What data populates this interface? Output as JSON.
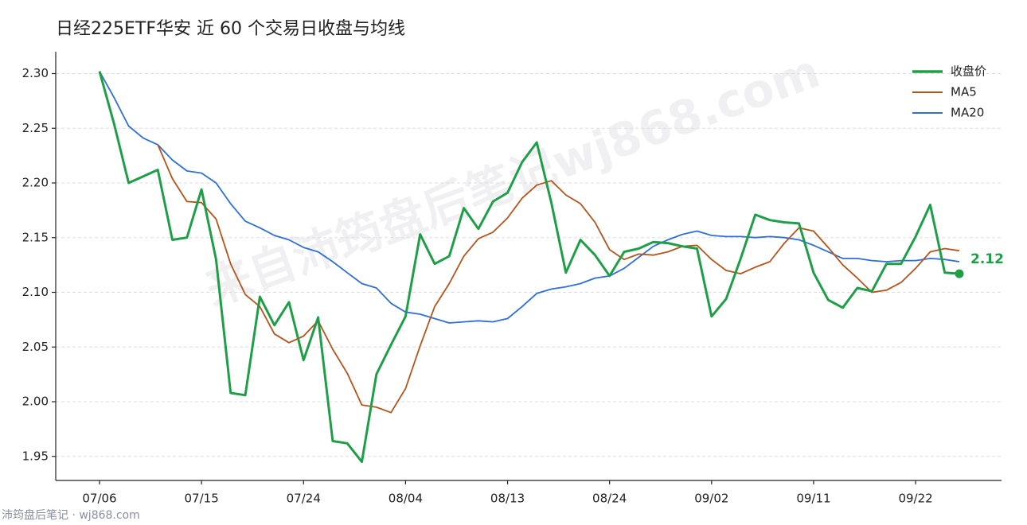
{
  "chart_data": {
    "type": "line",
    "title": "日经225ETF华安 近 60 个交易日收盘与均线",
    "watermark": "来自沛筠盘后笔记wj868.com",
    "footer": "沛筠盘后笔记 · wj868.com",
    "categories": [
      "07/06",
      null,
      null,
      null,
      null,
      null,
      null,
      "07/15",
      null,
      null,
      null,
      null,
      null,
      null,
      "07/24",
      null,
      null,
      null,
      null,
      null,
      null,
      "08/04",
      null,
      null,
      null,
      null,
      null,
      null,
      "08/13",
      null,
      null,
      null,
      null,
      null,
      null,
      "08/24",
      null,
      null,
      null,
      null,
      null,
      null,
      "09/02",
      null,
      null,
      null,
      null,
      null,
      null,
      "09/11",
      null,
      null,
      null,
      null,
      null,
      null,
      "09/22",
      null,
      null,
      null
    ],
    "series": [
      {
        "name": "收盘价",
        "color": "#1f9e48",
        "values": [
          2.302,
          2.254,
          2.2,
          2.206,
          2.212,
          2.148,
          2.15,
          2.194,
          2.13,
          2.008,
          2.006,
          2.096,
          2.07,
          2.091,
          2.038,
          2.077,
          1.964,
          1.962,
          1.945,
          2.025,
          2.052,
          2.078,
          2.153,
          2.126,
          2.133,
          2.177,
          2.158,
          2.183,
          2.191,
          2.219,
          2.237,
          2.182,
          2.118,
          2.148,
          2.134,
          2.115,
          2.137,
          2.14,
          2.146,
          2.145,
          2.142,
          2.14,
          2.078,
          2.094,
          2.131,
          2.171,
          2.166,
          2.164,
          2.163,
          2.118,
          2.093,
          2.086,
          2.104,
          2.101,
          2.126,
          2.126,
          2.151,
          2.18,
          2.118,
          2.117
        ],
        "value_labels": [
          null,
          null,
          null,
          null,
          null,
          null,
          null,
          null,
          null,
          null,
          null,
          null,
          null,
          null,
          null,
          null,
          null,
          null,
          null,
          null,
          null,
          null,
          null,
          null,
          null,
          null,
          null,
          null,
          null,
          null,
          null,
          null,
          null,
          null,
          null,
          null,
          null,
          null,
          null,
          null,
          null,
          null,
          null,
          null,
          null,
          null,
          null,
          null,
          null,
          null,
          null,
          null,
          null,
          null,
          null,
          null,
          null,
          null,
          null,
          "2.12"
        ]
      },
      {
        "name": "MA5",
        "color": "#b5541a",
        "values": [
          null,
          null,
          null,
          null,
          2.235,
          2.204,
          2.183,
          2.182,
          2.167,
          2.126,
          2.098,
          2.087,
          2.062,
          2.054,
          2.06,
          2.074,
          2.048,
          2.026,
          1.997,
          1.995,
          1.99,
          2.012,
          2.051,
          2.087,
          2.108,
          2.133,
          2.149,
          2.155,
          2.168,
          2.186,
          2.198,
          2.202,
          2.189,
          2.181,
          2.164,
          2.139,
          2.13,
          2.135,
          2.134,
          2.137,
          2.142,
          2.143,
          2.13,
          2.12,
          2.117,
          2.123,
          2.128,
          2.145,
          2.159,
          2.156,
          2.141,
          2.125,
          2.113,
          2.1,
          2.102,
          2.109,
          2.122,
          2.137,
          2.14,
          2.138
        ]
      },
      {
        "name": "MA20",
        "color": "#2e6fd9",
        "values": [
          2.302,
          2.278,
          2.252,
          2.241,
          2.235,
          2.221,
          2.211,
          2.209,
          2.2,
          2.181,
          2.165,
          2.159,
          2.152,
          2.148,
          2.141,
          2.137,
          2.128,
          2.118,
          2.108,
          2.104,
          2.09,
          2.082,
          2.08,
          2.076,
          2.072,
          2.073,
          2.074,
          2.073,
          2.076,
          2.087,
          2.099,
          2.103,
          2.105,
          2.108,
          2.113,
          2.115,
          2.122,
          2.132,
          2.142,
          2.148,
          2.153,
          2.156,
          2.152,
          2.151,
          2.151,
          2.15,
          2.151,
          2.15,
          2.148,
          2.143,
          2.137,
          2.131,
          2.131,
          2.129,
          2.128,
          2.129,
          2.129,
          2.131,
          2.13,
          2.128
        ]
      }
    ],
    "ylim": [
      1.928,
      2.32
    ],
    "yticks": [
      1.95,
      {
        "value": 2.0,
        "label": "2.00"
      },
      2.05,
      {
        "value": 2.1,
        "label": "2.10"
      },
      2.15,
      {
        "value": 2.2,
        "label": "2.20"
      },
      2.25,
      {
        "value": 2.3,
        "label": "2.30"
      }
    ],
    "grid": true,
    "legend": "upper right"
  }
}
